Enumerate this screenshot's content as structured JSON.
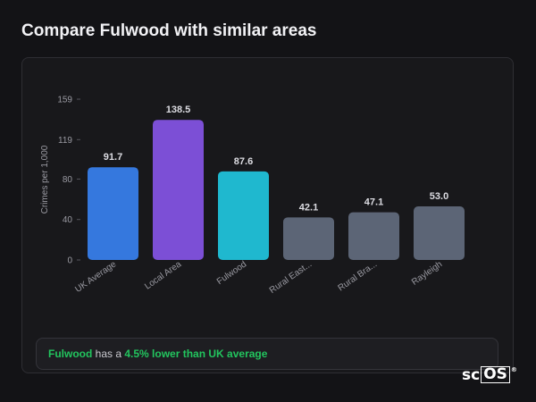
{
  "header": {
    "title": "Compare Fulwood with similar areas"
  },
  "chart_data": {
    "type": "bar",
    "ylabel": "Crimes per 1,000",
    "xlabel": "",
    "yticks": [
      0,
      40,
      80,
      119,
      159
    ],
    "ylim": [
      0,
      159
    ],
    "grid": false,
    "categories": [
      "UK Average",
      "Local Area",
      "Fulwood",
      "Rural East...",
      "Rural Bra...",
      "Rayleigh"
    ],
    "values": [
      91.7,
      138.5,
      87.6,
      42.1,
      47.1,
      53.0
    ],
    "value_labels": [
      "91.7",
      "138.5",
      "87.6",
      "42.1",
      "47.1",
      "53.0"
    ],
    "colors": [
      "#3578de",
      "#7c4fd6",
      "#1fb8cf",
      "#5c6576",
      "#5c6576",
      "#5c6576"
    ]
  },
  "summary": {
    "area": "Fulwood",
    "text": " has a ",
    "highlight": "4.5% lower than UK average"
  },
  "brand": {
    "prefix": "sc",
    "boxed": "OS",
    "mark": "®"
  }
}
